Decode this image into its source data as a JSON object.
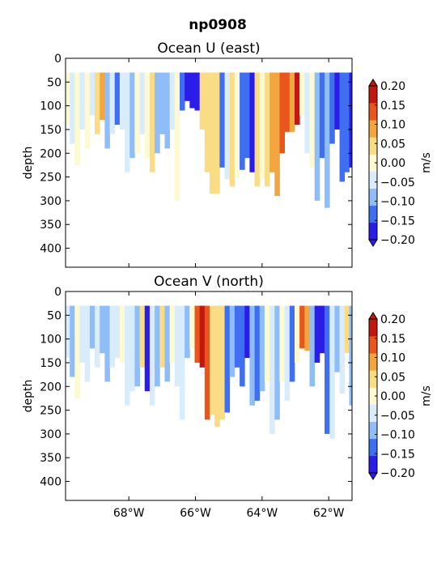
{
  "figure_title": "np0908",
  "chart_data": [
    {
      "type": "heatmap",
      "title": "Ocean U (east)",
      "ylabel": "depth",
      "yticks": [
        0,
        50,
        100,
        150,
        200,
        250,
        300,
        350,
        400
      ],
      "ylim": [
        440,
        0
      ],
      "xlim": [
        -69.9,
        -61.3
      ],
      "xticks": [
        -68,
        -66,
        -64,
        -62
      ],
      "xtick_labels": [
        "68°W",
        "66°W",
        "64°W",
        "62°W"
      ],
      "show_xtick_labels": false,
      "colorbar": {
        "label": "m/s",
        "levels": [
          -0.2,
          -0.15,
          -0.1,
          -0.05,
          0.0,
          0.05,
          0.1,
          0.15,
          0.2
        ],
        "tick_labels": [
          "−0.20",
          "−0.15",
          "−0.10",
          "−0.05",
          "0.00",
          "0.05",
          "0.10",
          "0.15",
          "0.20"
        ],
        "colors": [
          "#2b1de8",
          "#3f6ff0",
          "#8fbdf7",
          "#d9ecfb",
          "#fdfad2",
          "#f9dc84",
          "#f3a53f",
          "#e8561b",
          "#c1170f"
        ],
        "extend": "both"
      },
      "columns": [
        {
          "lon": -69.85,
          "depth": 140,
          "u": 0.03
        },
        {
          "lon": -69.7,
          "depth": 180,
          "u": -0.03
        },
        {
          "lon": -69.55,
          "depth": 225,
          "u": 0.02
        },
        {
          "lon": -69.4,
          "depth": 150,
          "u": -0.04
        },
        {
          "lon": -69.25,
          "depth": 190,
          "u": 0.02
        },
        {
          "lon": -69.1,
          "depth": 120,
          "u": -0.02
        },
        {
          "lon": -68.95,
          "depth": 160,
          "u": 0.06
        },
        {
          "lon": -68.8,
          "depth": 130,
          "u": 0.1
        },
        {
          "lon": -68.65,
          "depth": 190,
          "u": -0.06
        },
        {
          "lon": -68.5,
          "depth": 160,
          "u": -0.04
        },
        {
          "lon": -68.35,
          "depth": 140,
          "u": -0.11
        },
        {
          "lon": -68.2,
          "depth": 150,
          "u": -0.05
        },
        {
          "lon": -68.05,
          "depth": 240,
          "u": -0.04
        },
        {
          "lon": -67.9,
          "depth": 210,
          "u": -0.06
        },
        {
          "lon": -67.75,
          "depth": 200,
          "u": 0.02
        },
        {
          "lon": -67.6,
          "depth": 160,
          "u": -0.03
        },
        {
          "lon": -67.45,
          "depth": 210,
          "u": 0.03
        },
        {
          "lon": -67.3,
          "depth": 240,
          "u": 0.07
        },
        {
          "lon": -67.15,
          "depth": 200,
          "u": -0.08
        },
        {
          "lon": -67.0,
          "depth": 160,
          "u": -0.07
        },
        {
          "lon": -66.85,
          "depth": 190,
          "u": -0.09
        },
        {
          "lon": -66.7,
          "depth": 150,
          "u": -0.03
        },
        {
          "lon": -66.55,
          "depth": 300,
          "u": 0.02
        },
        {
          "lon": -66.4,
          "depth": 110,
          "u": -0.14
        },
        {
          "lon": -66.25,
          "depth": 90,
          "u": -0.17
        },
        {
          "lon": -66.1,
          "depth": 105,
          "u": -0.21
        },
        {
          "lon": -65.95,
          "depth": 110,
          "u": -0.21
        },
        {
          "lon": -65.8,
          "depth": 150,
          "u": 0.06
        },
        {
          "lon": -65.65,
          "depth": 240,
          "u": 0.08
        },
        {
          "lon": -65.5,
          "depth": 285,
          "u": 0.09
        },
        {
          "lon": -65.35,
          "depth": 285,
          "u": 0.07
        },
        {
          "lon": -65.2,
          "depth": 230,
          "u": -0.12
        },
        {
          "lon": -65.05,
          "depth": 255,
          "u": -0.04
        },
        {
          "lon": -64.9,
          "depth": 270,
          "u": 0.09
        },
        {
          "lon": -64.75,
          "depth": 250,
          "u": 0.04
        },
        {
          "lon": -64.6,
          "depth": 235,
          "u": -0.11
        },
        {
          "lon": -64.45,
          "depth": 210,
          "u": -0.15
        },
        {
          "lon": -64.3,
          "depth": 240,
          "u": -0.21
        },
        {
          "lon": -64.15,
          "depth": 270,
          "u": 0.08
        },
        {
          "lon": -64.0,
          "depth": 255,
          "u": 0.03
        },
        {
          "lon": -63.85,
          "depth": 270,
          "u": 0.06
        },
        {
          "lon": -63.7,
          "depth": 240,
          "u": 0.1
        },
        {
          "lon": -63.55,
          "depth": 290,
          "u": 0.13
        },
        {
          "lon": -63.4,
          "depth": 200,
          "u": 0.17
        },
        {
          "lon": -63.25,
          "depth": 155,
          "u": 0.16
        },
        {
          "lon": -63.1,
          "depth": 155,
          "u": 0.12
        },
        {
          "lon": -62.95,
          "depth": 140,
          "u": 0.22
        },
        {
          "lon": -62.8,
          "depth": 120,
          "u": 0.04
        },
        {
          "lon": -62.65,
          "depth": 200,
          "u": -0.04
        },
        {
          "lon": -62.5,
          "depth": 230,
          "u": 0.03
        },
        {
          "lon": -62.35,
          "depth": 300,
          "u": -0.09
        },
        {
          "lon": -62.2,
          "depth": 210,
          "u": -0.12
        },
        {
          "lon": -62.05,
          "depth": 315,
          "u": -0.06
        },
        {
          "lon": -61.9,
          "depth": 180,
          "u": -0.13
        },
        {
          "lon": -61.75,
          "depth": 150,
          "u": -0.19
        },
        {
          "lon": -61.6,
          "depth": 260,
          "u": -0.15
        },
        {
          "lon": -61.45,
          "depth": 240,
          "u": -0.12
        },
        {
          "lon": -61.32,
          "depth": 230,
          "u": -0.16
        }
      ]
    },
    {
      "type": "heatmap",
      "title": "Ocean V (north)",
      "ylabel": "depth",
      "yticks": [
        0,
        50,
        100,
        150,
        200,
        250,
        300,
        350,
        400
      ],
      "ylim": [
        440,
        0
      ],
      "xlim": [
        -69.9,
        -61.3
      ],
      "xticks": [
        -68,
        -66,
        -64,
        -62
      ],
      "xtick_labels": [
        "68°W",
        "66°W",
        "64°W",
        "62°W"
      ],
      "show_xtick_labels": true,
      "colorbar": {
        "label": "m/s",
        "levels": [
          -0.2,
          -0.15,
          -0.1,
          -0.05,
          0.0,
          0.05,
          0.1,
          0.15,
          0.2
        ],
        "tick_labels": [
          "−0.20",
          "−0.15",
          "−0.10",
          "−0.05",
          "0.00",
          "0.05",
          "0.10",
          "0.15",
          "0.20"
        ],
        "colors": [
          "#2b1de8",
          "#3f6ff0",
          "#8fbdf7",
          "#d9ecfb",
          "#fdfad2",
          "#f9dc84",
          "#f3a53f",
          "#e8561b",
          "#c1170f"
        ],
        "extend": "both"
      },
      "columns": [
        {
          "lon": -69.85,
          "depth": 140,
          "v": -0.03
        },
        {
          "lon": -69.7,
          "depth": 180,
          "v": -0.06
        },
        {
          "lon": -69.55,
          "depth": 225,
          "v": 0.02
        },
        {
          "lon": -69.4,
          "depth": 150,
          "v": -0.04
        },
        {
          "lon": -69.25,
          "depth": 190,
          "v": -0.03
        },
        {
          "lon": -69.1,
          "depth": 120,
          "v": -0.06
        },
        {
          "lon": -68.95,
          "depth": 160,
          "v": -0.04
        },
        {
          "lon": -68.8,
          "depth": 130,
          "v": -0.08
        },
        {
          "lon": -68.65,
          "depth": 190,
          "v": -0.07
        },
        {
          "lon": -68.5,
          "depth": 160,
          "v": -0.05
        },
        {
          "lon": -68.35,
          "depth": 140,
          "v": -0.03
        },
        {
          "lon": -68.2,
          "depth": 150,
          "v": 0.03
        },
        {
          "lon": -68.05,
          "depth": 240,
          "v": -0.05
        },
        {
          "lon": -67.9,
          "depth": 210,
          "v": -0.04
        },
        {
          "lon": -67.75,
          "depth": 200,
          "v": -0.09
        },
        {
          "lon": -67.6,
          "depth": 160,
          "v": 0.08
        },
        {
          "lon": -67.45,
          "depth": 210,
          "v": -0.2
        },
        {
          "lon": -67.3,
          "depth": 240,
          "v": -0.05
        },
        {
          "lon": -67.15,
          "depth": 200,
          "v": -0.1
        },
        {
          "lon": -67.0,
          "depth": 160,
          "v": 0.06
        },
        {
          "lon": -66.85,
          "depth": 190,
          "v": -0.08
        },
        {
          "lon": -66.7,
          "depth": 150,
          "v": 0.02
        },
        {
          "lon": -66.55,
          "depth": 200,
          "v": -0.04
        },
        {
          "lon": -66.4,
          "depth": 270,
          "v": -0.03
        },
        {
          "lon": -66.25,
          "depth": 140,
          "v": -0.07
        },
        {
          "lon": -66.1,
          "depth": 120,
          "v": 0.03
        },
        {
          "lon": -65.95,
          "depth": 150,
          "v": 0.19
        },
        {
          "lon": -65.8,
          "depth": 160,
          "v": 0.22
        },
        {
          "lon": -65.65,
          "depth": 270,
          "v": 0.18
        },
        {
          "lon": -65.5,
          "depth": 260,
          "v": 0.07
        },
        {
          "lon": -65.35,
          "depth": 285,
          "v": 0.09
        },
        {
          "lon": -65.2,
          "depth": 270,
          "v": 0.06
        },
        {
          "lon": -65.05,
          "depth": 255,
          "v": -0.12
        },
        {
          "lon": -64.9,
          "depth": 180,
          "v": -0.09
        },
        {
          "lon": -64.75,
          "depth": 160,
          "v": -0.14
        },
        {
          "lon": -64.6,
          "depth": 200,
          "v": -0.11
        },
        {
          "lon": -64.45,
          "depth": 140,
          "v": -0.2
        },
        {
          "lon": -64.3,
          "depth": 240,
          "v": -0.06
        },
        {
          "lon": -64.15,
          "depth": 230,
          "v": -0.12
        },
        {
          "lon": -64.0,
          "depth": 210,
          "v": -0.08
        },
        {
          "lon": -63.85,
          "depth": 190,
          "v": 0.04
        },
        {
          "lon": -63.7,
          "depth": 300,
          "v": -0.04
        },
        {
          "lon": -63.55,
          "depth": 270,
          "v": -0.09
        },
        {
          "lon": -63.4,
          "depth": 190,
          "v": 0.03
        },
        {
          "lon": -63.25,
          "depth": 230,
          "v": -0.05
        },
        {
          "lon": -63.1,
          "depth": 190,
          "v": -0.11
        },
        {
          "lon": -62.95,
          "depth": 150,
          "v": 0.02
        },
        {
          "lon": -62.8,
          "depth": 120,
          "v": 0.18
        },
        {
          "lon": -62.65,
          "depth": 125,
          "v": 0.14
        },
        {
          "lon": -62.5,
          "depth": 200,
          "v": -0.08
        },
        {
          "lon": -62.35,
          "depth": 150,
          "v": -0.21
        },
        {
          "lon": -62.2,
          "depth": 130,
          "v": -0.17
        },
        {
          "lon": -62.05,
          "depth": 300,
          "v": -0.11
        },
        {
          "lon": -61.9,
          "depth": 310,
          "v": -0.05
        },
        {
          "lon": -61.75,
          "depth": 170,
          "v": -0.09
        },
        {
          "lon": -61.6,
          "depth": 215,
          "v": -0.04
        },
        {
          "lon": -61.45,
          "depth": 130,
          "v": 0.05
        },
        {
          "lon": -61.32,
          "depth": 240,
          "v": -0.06
        }
      ]
    }
  ]
}
